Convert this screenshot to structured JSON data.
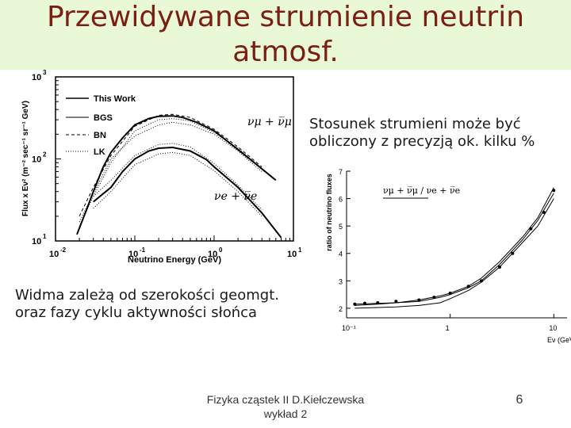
{
  "slide": {
    "title_line1": "Przewidywane strumienie neutrin",
    "title_line2": "atmosf.",
    "ratio_text_line1": "Stosunek strumieni może być",
    "ratio_text_line2": "obliczony z precyzją ok. kilku %",
    "spectra_text_line1": "Widma zależą od szerokości geomgt.",
    "spectra_text_line2": "oraz fazy cyklu aktywności słońca",
    "footer_line1": "Fizyka cząstek II D.Kiełczewska",
    "footer_line2": "wykład 2",
    "page_number": "6"
  },
  "chart_data": [
    {
      "type": "line",
      "xlabel": "Neutrino Energy (GeV)",
      "ylabel": "Flux x Eν² (m⁻² sec⁻¹ sr⁻¹ GeV)",
      "x_scale": "log",
      "y_scale": "log",
      "xlim": [
        0.01,
        10
      ],
      "ylim": [
        10,
        1000
      ],
      "x_ticks": [
        {
          "base": "10",
          "exp": "-2"
        },
        {
          "base": "10",
          "exp": "-1"
        },
        {
          "base": "10",
          "exp": "0"
        },
        {
          "base": "10",
          "exp": "1"
        }
      ],
      "y_ticks": [
        {
          "base": "10",
          "exp": "1"
        },
        {
          "base": "10",
          "exp": "2"
        },
        {
          "base": "10",
          "exp": "3"
        }
      ],
      "legend": [
        "This Work",
        "BGS",
        "BN",
        "LK"
      ],
      "annotations": {
        "muon": "νμ + ν̅μ",
        "electron": "νe + ν̅e"
      },
      "series": [
        {
          "name": "muon",
          "style": "solid",
          "x": [
            0.0186,
            0.025,
            0.03,
            0.04,
            0.05,
            0.07,
            0.1,
            0.15,
            0.2,
            0.3,
            0.4,
            0.6,
            1.0,
            2.0,
            3.0,
            6.0
          ],
          "y": [
            12,
            25,
            40,
            80,
            120,
            180,
            260,
            310,
            330,
            335,
            320,
            280,
            220,
            130,
            95,
            55
          ]
        },
        {
          "name": "muon-alt-1",
          "style": "dotted",
          "x": [
            0.02,
            0.03,
            0.05,
            0.1,
            0.2,
            0.3,
            0.5,
            1.0,
            2.0,
            4.0
          ],
          "y": [
            15,
            35,
            90,
            220,
            300,
            310,
            290,
            210,
            135,
            75
          ]
        },
        {
          "name": "muon-alt-2",
          "style": "dashed",
          "x": [
            0.02,
            0.03,
            0.05,
            0.1,
            0.2,
            0.3,
            0.5,
            1.0,
            2.0,
            4.0
          ],
          "y": [
            20,
            45,
            110,
            250,
            340,
            350,
            320,
            230,
            140,
            80
          ]
        },
        {
          "name": "muon-alt-3",
          "style": "dotted",
          "x": [
            0.02,
            0.03,
            0.05,
            0.1,
            0.2,
            0.3,
            0.5,
            1.0,
            2.0,
            4.0
          ],
          "y": [
            17,
            38,
            100,
            190,
            260,
            280,
            260,
            200,
            125,
            70
          ]
        },
        {
          "name": "electron",
          "style": "solid",
          "x": [
            0.03,
            0.05,
            0.07,
            0.1,
            0.15,
            0.2,
            0.3,
            0.5,
            0.8,
            1.0,
            2.0,
            4.0,
            7.0
          ],
          "y": [
            30,
            45,
            70,
            100,
            125,
            135,
            138,
            125,
            98,
            80,
            45,
            22,
            11
          ]
        },
        {
          "name": "electron-alt-1",
          "style": "dotted",
          "x": [
            0.03,
            0.05,
            0.1,
            0.2,
            0.3,
            0.5,
            1.0,
            2.0,
            4.0
          ],
          "y": [
            25,
            40,
            85,
            115,
            120,
            110,
            72,
            40,
            20
          ]
        },
        {
          "name": "electron-alt-2",
          "style": "dotted",
          "x": [
            0.03,
            0.05,
            0.1,
            0.2,
            0.3,
            0.5,
            1.0,
            2.0,
            4.0
          ],
          "y": [
            35,
            55,
            110,
            150,
            155,
            140,
            88,
            48,
            24
          ]
        }
      ]
    },
    {
      "type": "line",
      "title": "νμ + ν̅μ / νe + ν̅e",
      "xlabel": "Eν (GeV)",
      "ylabel": "ratio of neutrino fluxes",
      "x_scale": "log",
      "xlim": [
        0.1,
        10
      ],
      "ylim": [
        2,
        7
      ],
      "x_ticks": [
        "10⁻¹",
        "1",
        "10"
      ],
      "y_ticks": [
        "2",
        "3",
        "4",
        "5",
        "6",
        "7"
      ],
      "series": [
        {
          "name": "model-a",
          "x": [
            0.12,
            0.2,
            0.3,
            0.5,
            0.8,
            1.0,
            1.5,
            2.0,
            3.0,
            5.0,
            7.0,
            10.0
          ],
          "y": [
            2.15,
            2.18,
            2.2,
            2.3,
            2.45,
            2.55,
            2.8,
            3.1,
            3.7,
            4.6,
            5.3,
            6.4
          ]
        },
        {
          "name": "model-b",
          "x": [
            0.12,
            0.2,
            0.3,
            0.5,
            0.8,
            1.0,
            1.5,
            2.0,
            3.0,
            5.0,
            7.0,
            10.0
          ],
          "y": [
            2.1,
            2.15,
            2.2,
            2.25,
            2.4,
            2.5,
            2.75,
            3.0,
            3.6,
            4.5,
            5.2,
            6.2
          ]
        },
        {
          "name": "model-c",
          "x": [
            0.12,
            0.3,
            0.5,
            0.8,
            1.0,
            1.5,
            2.0,
            3.0,
            5.0,
            7.0,
            10.0
          ],
          "y": [
            2.0,
            2.05,
            2.1,
            2.2,
            2.35,
            2.65,
            2.95,
            3.5,
            4.4,
            5.0,
            6.0
          ]
        },
        {
          "name": "points",
          "x": [
            0.12,
            0.15,
            0.2,
            0.3,
            0.5,
            0.7,
            1.0,
            1.5,
            2.0,
            3.0,
            4.0,
            6.0,
            8.0,
            10.0
          ],
          "y": [
            2.15,
            2.18,
            2.2,
            2.25,
            2.3,
            2.4,
            2.55,
            2.8,
            3.0,
            3.5,
            4.0,
            4.9,
            5.5,
            6.3
          ]
        }
      ]
    }
  ]
}
